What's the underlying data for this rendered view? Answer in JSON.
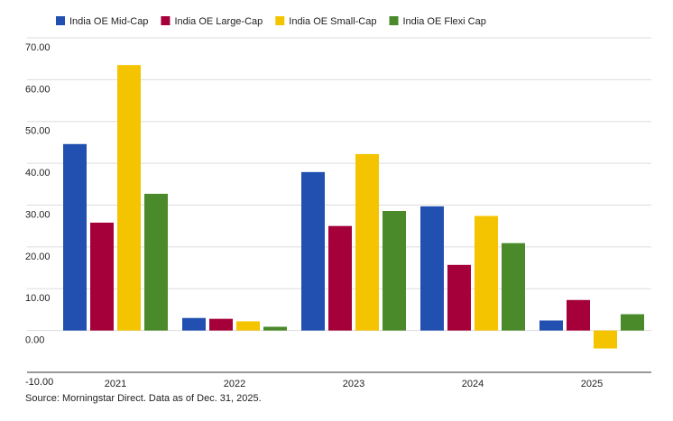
{
  "chart_data": {
    "type": "bar",
    "categories": [
      "2021",
      "2022",
      "2023",
      "2024",
      "2025"
    ],
    "series": [
      {
        "name": "India OE Mid-Cap",
        "color": "#2150b0",
        "values": [
          44.6,
          3.0,
          37.9,
          29.7,
          2.4
        ]
      },
      {
        "name": "India OE Large-Cap",
        "color": "#a5003a",
        "values": [
          25.8,
          2.8,
          25.0,
          15.7,
          7.3
        ]
      },
      {
        "name": "India OE Small-Cap",
        "color": "#f5c400",
        "values": [
          63.5,
          2.2,
          42.2,
          27.4,
          -4.3
        ]
      },
      {
        "name": "India OE Flexi Cap",
        "color": "#4a8a2a",
        "values": [
          32.7,
          0.9,
          28.6,
          20.9,
          3.9
        ]
      }
    ],
    "ylim": [
      -10,
      70
    ],
    "yticks": [
      {
        "value": -10,
        "label": "-10.00"
      },
      {
        "value": 0,
        "label": "0.00"
      },
      {
        "value": 10,
        "label": "10.00"
      },
      {
        "value": 20,
        "label": "20.00"
      },
      {
        "value": 30,
        "label": "30.00"
      },
      {
        "value": 40,
        "label": "40.00"
      },
      {
        "value": 50,
        "label": "50.00"
      },
      {
        "value": 60,
        "label": "60.00"
      },
      {
        "value": 70,
        "label": "70.00"
      }
    ],
    "grid": true,
    "legend": "top",
    "source": "Source: Morningstar Direct. Data as of Dec. 31, 2025."
  }
}
